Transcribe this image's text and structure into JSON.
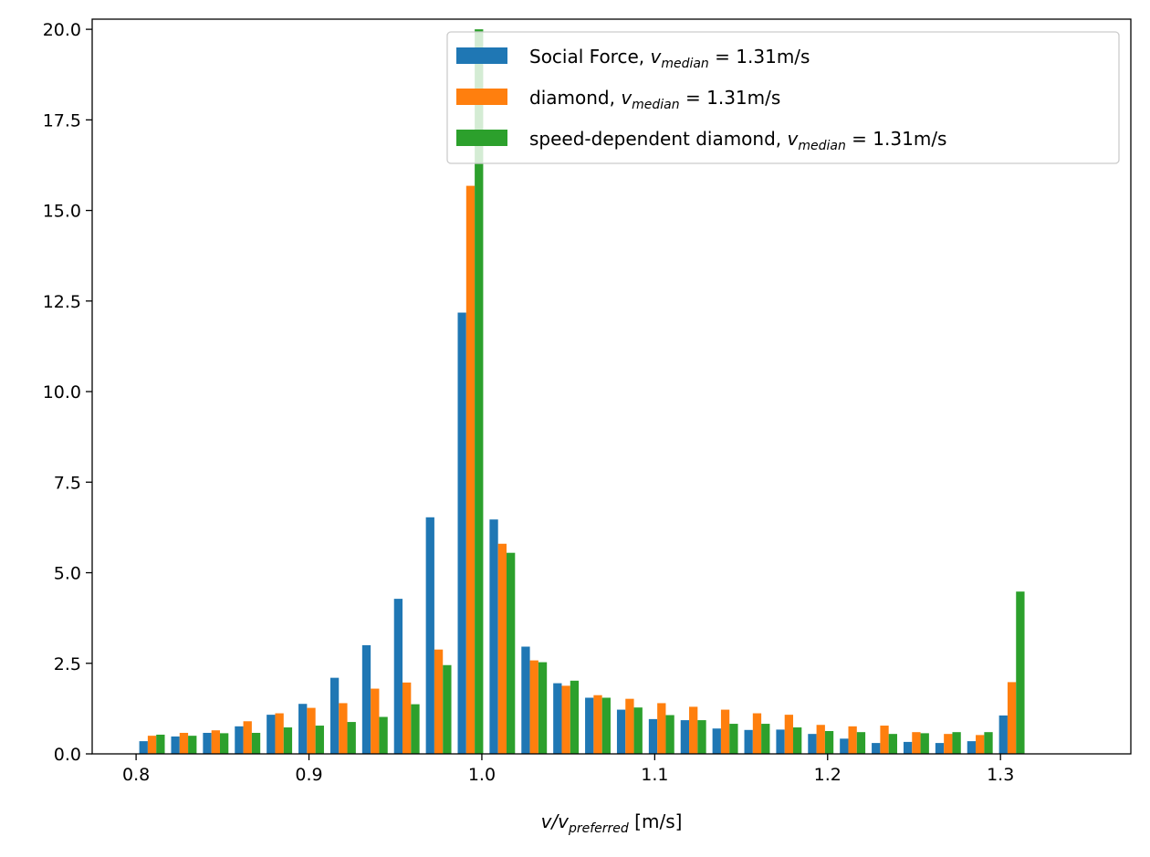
{
  "chart_data": {
    "type": "bar",
    "title": "",
    "xlabel": {
      "main": "v/v",
      "sub": "preferred",
      "unit": " [m/s]"
    },
    "ylabel": "",
    "xlim": [
      0.7746,
      1.3754
    ],
    "ylim": [
      0,
      20.28
    ],
    "xticks": [
      "0.8",
      "0.9",
      "1.0",
      "1.1",
      "1.2",
      "1.3"
    ],
    "xtick_values": [
      0.8,
      0.9,
      1.0,
      1.1,
      1.2,
      1.3
    ],
    "yticks": [
      "0.0",
      "2.5",
      "5.0",
      "7.5",
      "10.0",
      "12.5",
      "15.0",
      "17.5",
      "20.0"
    ],
    "ytick_values": [
      0,
      2.5,
      5,
      7.5,
      10,
      12.5,
      15,
      17.5,
      20
    ],
    "grid": false,
    "legend_position": "top-right",
    "bin_start": 0.8,
    "bin_width": 0.01842,
    "series": [
      {
        "name": "Social Force, v_median = 1.31m/s",
        "legend": {
          "pre": "Social Force, ",
          "var": "v",
          "sub": "median",
          "post": " = 1.31m/s"
        },
        "color": "#1f77b4",
        "values": [
          0.35,
          0.48,
          0.58,
          0.76,
          1.08,
          1.38,
          2.1,
          3.0,
          4.28,
          6.53,
          12.18,
          6.47,
          2.96,
          1.95,
          1.55,
          1.22,
          0.96,
          0.93,
          0.7,
          0.66,
          0.67,
          0.55,
          0.42,
          0.3,
          0.33,
          0.3,
          0.35,
          1.06
        ]
      },
      {
        "name": "diamond, v_median = 1.31m/s",
        "legend": {
          "pre": "diamond, ",
          "var": "v",
          "sub": "median",
          "post": " = 1.31m/s"
        },
        "color": "#ff7f0e",
        "values": [
          0.5,
          0.58,
          0.65,
          0.9,
          1.12,
          1.27,
          1.4,
          1.8,
          1.97,
          2.88,
          15.68,
          5.8,
          2.58,
          1.88,
          1.62,
          1.52,
          1.4,
          1.3,
          1.22,
          1.12,
          1.08,
          0.8,
          0.76,
          0.78,
          0.6,
          0.55,
          0.52,
          1.98
        ]
      },
      {
        "name": "speed-dependent diamond, v_median = 1.31m/s",
        "legend": {
          "pre": "speed-dependent diamond, ",
          "var": "v",
          "sub": "median",
          "post": " = 1.31m/s"
        },
        "color": "#2ca02c",
        "values": [
          0.53,
          0.5,
          0.57,
          0.58,
          0.73,
          0.78,
          0.88,
          1.02,
          1.37,
          2.45,
          20.0,
          5.55,
          2.53,
          2.02,
          1.55,
          1.28,
          1.07,
          0.93,
          0.83,
          0.83,
          0.73,
          0.63,
          0.6,
          0.55,
          0.57,
          0.6,
          0.6,
          4.48
        ]
      }
    ]
  }
}
